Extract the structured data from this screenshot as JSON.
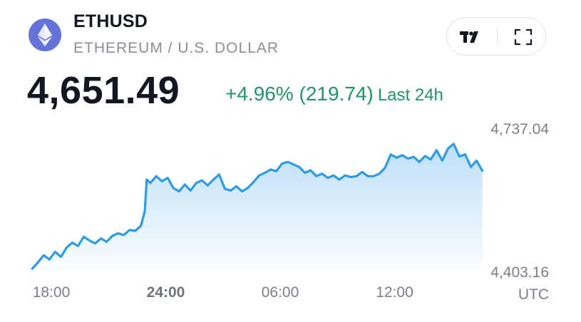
{
  "header": {
    "symbol": "ETHUSD",
    "full_name": "ETHEREUM / U.S. DOLLAR",
    "logo_icon": "ethereum-icon"
  },
  "toolbar": {
    "tradingview_icon": "tradingview-logo-icon",
    "fullscreen_icon": "fullscreen-icon"
  },
  "quote": {
    "price": "4,651.49",
    "change": "+4.96% (219.74)",
    "period": "Last 24h"
  },
  "colors": {
    "line": "#2f9be7",
    "positive": "#22936a",
    "logo_bg": "#6473d8"
  },
  "chart_data": {
    "type": "area",
    "x_ticks": [
      "18:00",
      "24:00",
      "06:00",
      "12:00"
    ],
    "bold_tick": "24:00",
    "timezone": "UTC",
    "y_ticks": [
      "4,737.04",
      "4,403.16"
    ],
    "ylim": [
      4403.16,
      4737.04
    ],
    "x_unit_hours_from_first_tick": "x",
    "xlim": [
      -1.0,
      22.6
    ],
    "series": [
      {
        "x": [
          -1.0,
          -0.7,
          -0.4,
          -0.1,
          0.2,
          0.5,
          0.8,
          1.1,
          1.4,
          1.7,
          2.0,
          2.3,
          2.6,
          2.9,
          3.2,
          3.5,
          3.8,
          4.1,
          4.4,
          4.7,
          4.9,
          5.0,
          5.2,
          5.5,
          5.8,
          6.1,
          6.4,
          6.7,
          7.0,
          7.3,
          7.6,
          7.9,
          8.2,
          8.5,
          8.8,
          9.1,
          9.4,
          9.7,
          10.0,
          10.3,
          10.6,
          10.9,
          11.2,
          11.5,
          11.8,
          12.1,
          12.4,
          12.7,
          13.0,
          13.3,
          13.6,
          13.9,
          14.2,
          14.5,
          14.8,
          15.1,
          15.4,
          15.7,
          16.0,
          16.3,
          16.6,
          16.9,
          17.2,
          17.5,
          17.8,
          18.1,
          18.4,
          18.7,
          19.0,
          19.3,
          19.6,
          19.9,
          20.2,
          20.5,
          20.8,
          21.1,
          21.4,
          21.7,
          22.0,
          22.3,
          22.6
        ],
        "values": [
          4408,
          4423,
          4440,
          4430,
          4448,
          4436,
          4458,
          4470,
          4462,
          4484,
          4475,
          4468,
          4480,
          4472,
          4486,
          4492,
          4488,
          4500,
          4498,
          4510,
          4545,
          4620,
          4612,
          4628,
          4616,
          4624,
          4600,
          4592,
          4608,
          4594,
          4612,
          4618,
          4606,
          4620,
          4632,
          4598,
          4594,
          4604,
          4592,
          4600,
          4614,
          4630,
          4636,
          4644,
          4640,
          4658,
          4662,
          4656,
          4650,
          4636,
          4642,
          4628,
          4634,
          4624,
          4630,
          4620,
          4630,
          4626,
          4628,
          4638,
          4628,
          4628,
          4634,
          4648,
          4680,
          4672,
          4678,
          4670,
          4674,
          4662,
          4676,
          4668,
          4690,
          4665,
          4694,
          4705,
          4675,
          4680,
          4650,
          4665,
          4641
        ]
      }
    ]
  }
}
